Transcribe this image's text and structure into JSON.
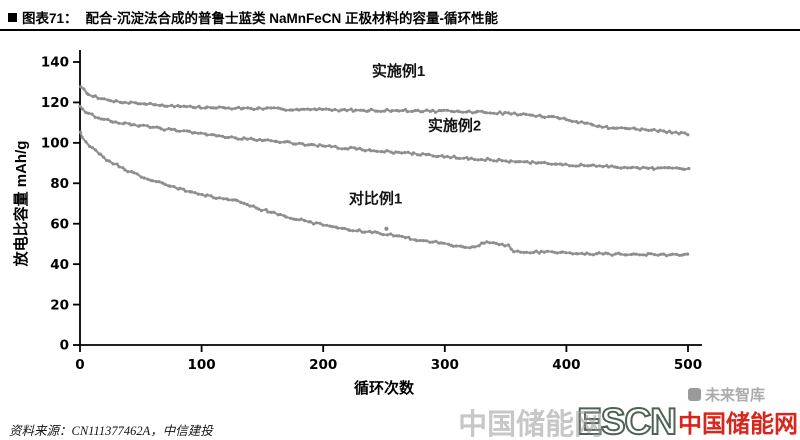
{
  "header": {
    "figure_label": "图表71：",
    "title": "配合-沉淀法合成的普鲁士蓝类 NaMnFeCN 正极材料的容量-循环性能"
  },
  "chart_data": {
    "type": "scatter",
    "title": "",
    "xlabel": "循环次数",
    "ylabel": "放电比容量 mAh/g",
    "xlim": [
      0,
      500
    ],
    "ylim": [
      0,
      140
    ],
    "xticks": [
      0,
      100,
      200,
      300,
      400,
      500
    ],
    "yticks": [
      0,
      20,
      40,
      60,
      80,
      100,
      120,
      140
    ],
    "grid": false,
    "legend_position": "inline-labels",
    "marker_color": "#8e8e8e",
    "series": [
      {
        "name": "实施例1",
        "label": {
          "x": 262,
          "y": 133
        },
        "anchors": [
          [
            0,
            128
          ],
          [
            6,
            124.5
          ],
          [
            15,
            122
          ],
          [
            30,
            120.5
          ],
          [
            50,
            119.5
          ],
          [
            70,
            118.5
          ],
          [
            100,
            117.5
          ],
          [
            140,
            117
          ],
          [
            180,
            116.6
          ],
          [
            220,
            116.2
          ],
          [
            260,
            116
          ],
          [
            300,
            115.6
          ],
          [
            330,
            115.2
          ],
          [
            360,
            114.3
          ],
          [
            385,
            112.8
          ],
          [
            400,
            111.8
          ],
          [
            415,
            109.8
          ],
          [
            430,
            107.8
          ],
          [
            450,
            107.2
          ],
          [
            470,
            106.2
          ],
          [
            485,
            105.4
          ],
          [
            500,
            104.3
          ]
        ]
      },
      {
        "name": "实施例2",
        "label": {
          "x": 308,
          "y": 106
        },
        "anchors": [
          [
            0,
            118
          ],
          [
            6,
            114.8
          ],
          [
            15,
            112.4
          ],
          [
            30,
            110.4
          ],
          [
            50,
            108.4
          ],
          [
            75,
            106.4
          ],
          [
            100,
            104.4
          ],
          [
            130,
            102.4
          ],
          [
            160,
            100.8
          ],
          [
            200,
            98.4
          ],
          [
            240,
            96.3
          ],
          [
            280,
            94.3
          ],
          [
            320,
            92.4
          ],
          [
            360,
            90.6
          ],
          [
            400,
            89.2
          ],
          [
            440,
            88.1
          ],
          [
            470,
            87.5
          ],
          [
            500,
            87
          ]
        ]
      },
      {
        "name": "对比例1",
        "label": {
          "x": 243,
          "y": 70
        },
        "anchors": [
          [
            0,
            105
          ],
          [
            6,
            99.5
          ],
          [
            15,
            94.8
          ],
          [
            25,
            90.8
          ],
          [
            40,
            86
          ],
          [
            55,
            82.4
          ],
          [
            70,
            79.4
          ],
          [
            85,
            76.9
          ],
          [
            100,
            74.4
          ],
          [
            115,
            72.6
          ],
          [
            130,
            71.8
          ],
          [
            140,
            69
          ],
          [
            155,
            66
          ],
          [
            170,
            63.5
          ],
          [
            185,
            61.4
          ],
          [
            200,
            59.4
          ],
          [
            215,
            57.6
          ],
          [
            230,
            56.4
          ],
          [
            245,
            55.4
          ],
          [
            260,
            54
          ],
          [
            275,
            52.4
          ],
          [
            290,
            51
          ],
          [
            300,
            50
          ],
          [
            312,
            48.9
          ],
          [
            322,
            48.4
          ],
          [
            332,
            50.6
          ],
          [
            342,
            50.2
          ],
          [
            352,
            49.3
          ],
          [
            358,
            46.2
          ],
          [
            372,
            46
          ],
          [
            392,
            45.8
          ],
          [
            412,
            45.4
          ],
          [
            432,
            45
          ],
          [
            455,
            44.8
          ],
          [
            478,
            44.6
          ],
          [
            500,
            44.5
          ]
        ],
        "outliers": [
          [
            252,
            57.5
          ]
        ]
      }
    ]
  },
  "footer": {
    "source": "资料来源：CN111377462A，中信建投"
  },
  "watermarks": {
    "zhiku": "未来智库",
    "gray_cn": "中国储能网",
    "escn_abbr": "ESCN",
    "escn_name": "中国储能网"
  }
}
